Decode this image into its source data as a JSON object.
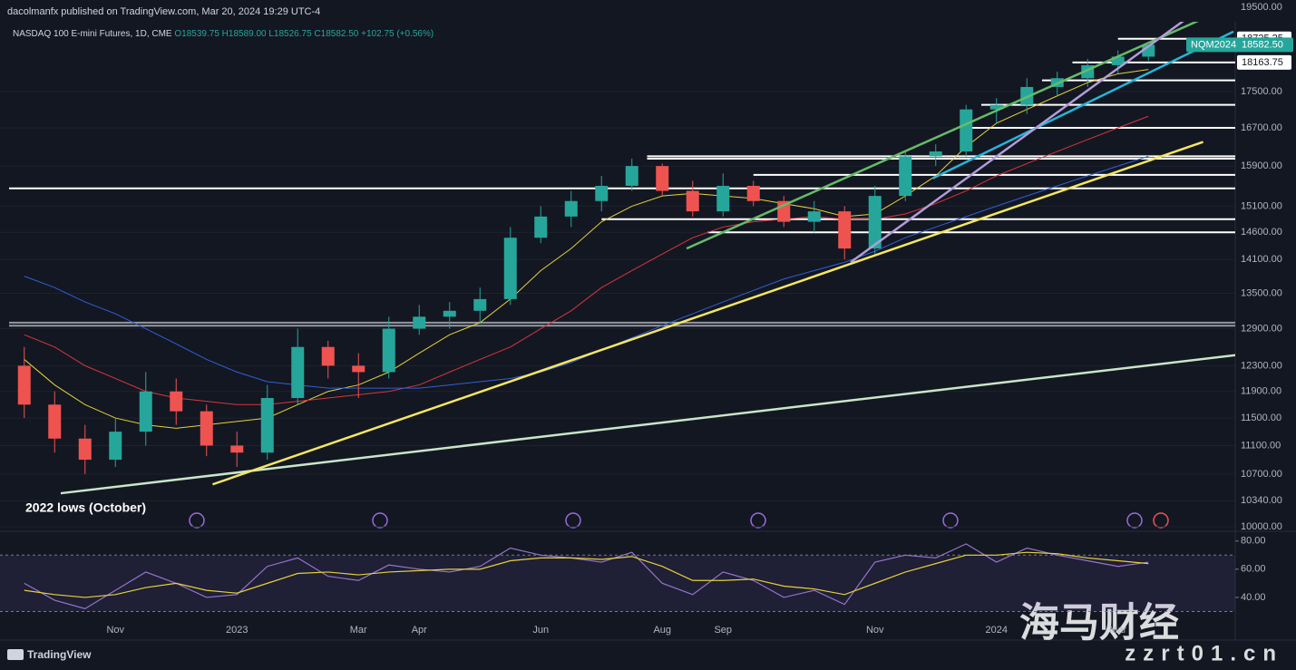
{
  "header": {
    "publisher": "dacolmanfx published on TradingView.com, Mar 20, 2024 19:29 UTC-4",
    "symbol": "NASDAQ 100 E-mini Futures, 1D, CME",
    "ohlc": "O18539.75 H18589.00 L18526.75 C18582.50 +102.75 (+0.56%)"
  },
  "footer": {
    "logo": "TradingView"
  },
  "watermark": {
    "title": "海马财经",
    "site": "zzrt01.cn"
  },
  "chart_data": [
    {
      "type": "candlestick",
      "log_scale": true,
      "annotation": "2022 lows (October)",
      "categories": [
        null,
        null,
        null,
        "Nov",
        null,
        null,
        null,
        "2023",
        null,
        null,
        null,
        "Mar",
        null,
        "Apr",
        null,
        null,
        null,
        "Jun",
        null,
        null,
        null,
        "Aug",
        null,
        "Sep",
        null,
        null,
        null,
        null,
        "Nov",
        null,
        null,
        null,
        "2024",
        null,
        null,
        null,
        "Mar",
        null
      ],
      "open": [
        12300,
        11700,
        11200,
        10900,
        11300,
        11900,
        11600,
        11100,
        11000,
        11800,
        12600,
        12300,
        12200,
        12900,
        13100,
        13200,
        13400,
        14500,
        14900,
        15200,
        15500,
        15900,
        15400,
        15000,
        15500,
        15200,
        14800,
        15000,
        14300,
        15300,
        16100,
        16200,
        17100,
        17200,
        17600,
        17800,
        18100,
        18300
      ],
      "high": [
        12600,
        11900,
        11400,
        11500,
        12200,
        12100,
        11700,
        11300,
        12000,
        12900,
        12700,
        12500,
        13100,
        13300,
        13350,
        13600,
        14700,
        15100,
        15400,
        15700,
        16050,
        15950,
        15600,
        15750,
        15600,
        15300,
        15200,
        15100,
        15500,
        16200,
        16350,
        17200,
        17350,
        17800,
        17950,
        18250,
        18450,
        18589
      ],
      "low": [
        11500,
        11000,
        10700,
        10800,
        11100,
        11400,
        10950,
        10800,
        10900,
        11700,
        12100,
        11800,
        12100,
        12800,
        12900,
        13000,
        13300,
        14400,
        14700,
        15000,
        15400,
        15300,
        14900,
        14900,
        15100,
        14700,
        14600,
        14100,
        14200,
        15200,
        15900,
        16100,
        16800,
        17000,
        17400,
        17600,
        17900,
        18200
      ],
      "close": [
        11700,
        11200,
        10900,
        11300,
        11900,
        11600,
        11100,
        11000,
        11800,
        12600,
        12300,
        12200,
        12900,
        13100,
        13200,
        13400,
        14500,
        14900,
        15200,
        15500,
        15900,
        15400,
        15000,
        15500,
        15200,
        14800,
        15000,
        14300,
        15300,
        16100,
        16200,
        17100,
        17200,
        17600,
        17800,
        18100,
        18300,
        18582.5
      ],
      "up_color": "#26a69a",
      "down_color": "#ef5350",
      "moving_averages": [
        {
          "color": "#e6d13a",
          "values": [
            12400,
            12000,
            11700,
            11500,
            11400,
            11350,
            11400,
            11450,
            11500,
            11700,
            11900,
            12000,
            12200,
            12500,
            12800,
            13000,
            13400,
            13900,
            14300,
            14800,
            15100,
            15300,
            15350,
            15300,
            15250,
            15150,
            15050,
            14900,
            14950,
            15300,
            15700,
            16300,
            16800,
            17100,
            17400,
            17700,
            17900,
            18000
          ]
        },
        {
          "color": "#d8363b",
          "values": [
            12800,
            12600,
            12300,
            12100,
            11900,
            11800,
            11750,
            11700,
            11700,
            11750,
            11800,
            11850,
            11900,
            12000,
            12200,
            12400,
            12600,
            12900,
            13200,
            13600,
            13900,
            14200,
            14500,
            14700,
            14800,
            14850,
            14900,
            14850,
            14850,
            14950,
            15150,
            15400,
            15700,
            15950,
            16200,
            16450,
            16700,
            16950
          ]
        },
        {
          "color": "#2f5fd8",
          "values": [
            13800,
            13600,
            13350,
            13150,
            12900,
            12650,
            12400,
            12200,
            12050,
            12000,
            11950,
            11950,
            11950,
            11950,
            12000,
            12050,
            12100,
            12200,
            12350,
            12550,
            12750,
            12950,
            13150,
            13350,
            13550,
            13750,
            13900,
            14050,
            14250,
            14500,
            14700,
            14900,
            15100,
            15300,
            15500,
            15700,
            15900,
            16100
          ]
        }
      ],
      "levels": [
        {
          "value": 18725.25,
          "from": 36,
          "color": "#ffffff"
        },
        {
          "value": 18163.75,
          "from": 34.5,
          "color": "#ffffff"
        },
        {
          "value": 17750,
          "from": 33.5,
          "color": "#ffffff"
        },
        {
          "value": 17200,
          "from": 31.5,
          "color": "#ffffff"
        },
        {
          "value": 16700,
          "from": 31,
          "color": "#ffffff"
        },
        {
          "value": 16100,
          "from": 20.5,
          "color": "#ffffff"
        },
        {
          "value": 16050,
          "from": 20.5,
          "color": "#ffffff"
        },
        {
          "value": 15720,
          "from": 24,
          "color": "#ffffff"
        },
        {
          "value": 15450,
          "from": -0.5,
          "color": "#ffffff"
        },
        {
          "value": 14850,
          "from": 19,
          "color": "#ffffff"
        },
        {
          "value": 14600,
          "from": 22.5,
          "color": "#ffffff"
        },
        {
          "value": 13000,
          "from": -0.5,
          "color": "#9598a1"
        },
        {
          "value": 12950,
          "from": -0.5,
          "color": "#9598a1"
        }
      ],
      "trendlines": [
        {
          "color": "#c8e6c9",
          "points": [
            [
              1.2,
              10440
            ],
            [
              39.9,
              12470
            ]
          ]
        },
        {
          "color": "#f5e663",
          "points": [
            [
              6.2,
              10560
            ],
            [
              38.8,
              16400
            ]
          ]
        },
        {
          "color": "#26b5d9",
          "points": [
            [
              29.9,
              15650
            ],
            [
              39.8,
              18900
            ]
          ]
        },
        {
          "color": "#66bb6a",
          "points": [
            [
              21.8,
              14300
            ],
            [
              38.9,
              19250
            ]
          ]
        },
        {
          "color": "#b39ddb",
          "points": [
            [
              27.2,
              14050
            ],
            [
              38.5,
              19350
            ]
          ]
        }
      ],
      "ylim": [
        10000,
        19500
      ],
      "yticks": [
        {
          "value": 19500,
          "label": "19500.00"
        },
        {
          "value": 17500,
          "label": "17500.00"
        },
        {
          "value": 16700,
          "label": "16700.00"
        },
        {
          "value": 15900,
          "label": "15900.00"
        },
        {
          "value": 15100,
          "label": "15100.00"
        },
        {
          "value": 14600,
          "label": "14600.00"
        },
        {
          "value": 14100,
          "label": "14100.00"
        },
        {
          "value": 13500,
          "label": "13500.00"
        },
        {
          "value": 12900,
          "label": "12900.00"
        },
        {
          "value": 12300,
          "label": "12300.00"
        },
        {
          "value": 11900,
          "label": "11900.00"
        },
        {
          "value": 11500,
          "label": "11500.00"
        },
        {
          "value": 11100,
          "label": "11100.00"
        },
        {
          "value": 10700,
          "label": "10700.00"
        },
        {
          "value": 10340,
          "label": "10340.00"
        },
        {
          "value": 10000,
          "label": "10000.00"
        }
      ],
      "price_labels": [
        {
          "value": 18725.25,
          "label": "18725.25"
        },
        {
          "value": 18163.75,
          "label": "18163.75"
        }
      ],
      "last_price": {
        "name": "NQM2024",
        "value": 18582.5,
        "label": "18582.50",
        "color": "#26a69a"
      }
    },
    {
      "type": "rsi",
      "series": [
        {
          "color": "#9575cd",
          "values": [
            50,
            38,
            32,
            45,
            58,
            50,
            40,
            42,
            62,
            68,
            55,
            52,
            63,
            60,
            58,
            62,
            75,
            70,
            68,
            65,
            72,
            50,
            42,
            58,
            52,
            40,
            45,
            35,
            65,
            70,
            68,
            78,
            65,
            75,
            70,
            66,
            62,
            65
          ]
        },
        {
          "color": "#e6d13a",
          "values": [
            45,
            42,
            40,
            42,
            47,
            50,
            45,
            43,
            50,
            57,
            58,
            56,
            58,
            59,
            60,
            60,
            66,
            68,
            68,
            67,
            69,
            62,
            52,
            52,
            53,
            48,
            46,
            42,
            50,
            58,
            64,
            70,
            70,
            72,
            71,
            68,
            66,
            64
          ]
        }
      ],
      "band": [
        30,
        70
      ],
      "ylim": [
        29,
        85
      ],
      "yticks": [
        {
          "value": 80,
          "label": "80.00"
        },
        {
          "value": 60,
          "label": "60.00"
        },
        {
          "value": 40,
          "label": "40.00"
        }
      ]
    }
  ]
}
